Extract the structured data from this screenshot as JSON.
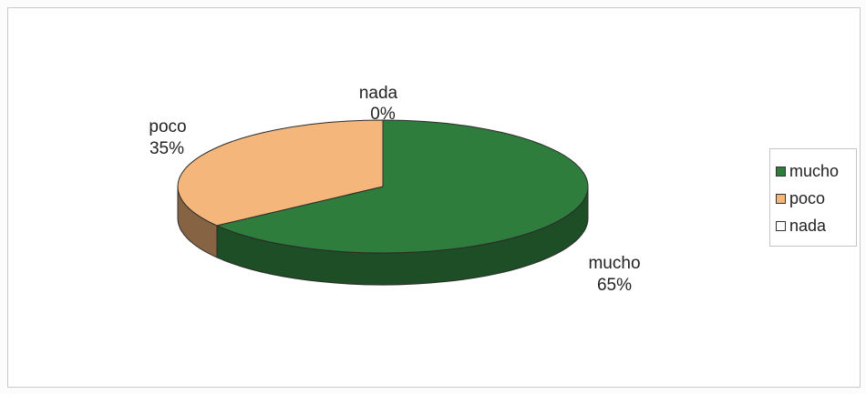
{
  "chart_data": {
    "type": "pie",
    "categories": [
      "mucho",
      "poco",
      "nada"
    ],
    "values": [
      65,
      35,
      0
    ],
    "data_labels": [
      {
        "name": "mucho",
        "value": "65%"
      },
      {
        "name": "poco",
        "value": "35%"
      },
      {
        "name": "nada",
        "value": "0%"
      }
    ],
    "colors": {
      "mucho": "#2e7d3c",
      "poco": "#f4b67a",
      "nada": "#ffffff"
    },
    "title": "",
    "legend_placement": "right",
    "style": "3d"
  },
  "legend": {
    "items": [
      {
        "label": "mucho",
        "color": "#2e7d3c"
      },
      {
        "label": "poco",
        "color": "#f4b67a"
      },
      {
        "label": "nada",
        "color": "#ffffff"
      }
    ]
  }
}
